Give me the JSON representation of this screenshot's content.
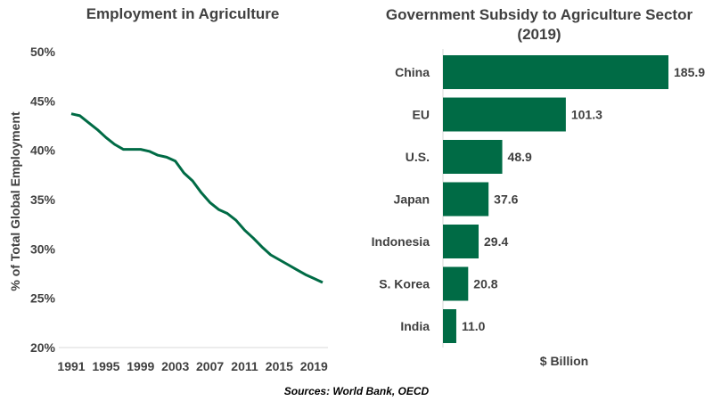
{
  "colors": {
    "series": "#006B45",
    "text": "#404040"
  },
  "source": "Sources: World Bank, OECD",
  "chart_data": [
    {
      "type": "line",
      "title": "Employment in Agriculture",
      "ylabel": "% of Total Global Employment",
      "xlabel": "",
      "x_ticks": [
        1991,
        1995,
        1999,
        2003,
        2007,
        2011,
        2015,
        2019
      ],
      "y_ticks": [
        "20%",
        "25%",
        "30%",
        "35%",
        "40%",
        "45%",
        "50%"
      ],
      "xlim": [
        1991,
        2020
      ],
      "ylim": [
        20,
        50
      ],
      "grid": false,
      "x": [
        1991,
        1992,
        1993,
        1994,
        1995,
        1996,
        1997,
        1998,
        1999,
        2000,
        2001,
        2002,
        2003,
        2004,
        2005,
        2006,
        2007,
        2008,
        2009,
        2010,
        2011,
        2012,
        2013,
        2014,
        2015,
        2016,
        2017,
        2018,
        2019,
        2020
      ],
      "y": [
        43.7,
        43.5,
        42.8,
        42.1,
        41.3,
        40.6,
        40.1,
        40.1,
        40.1,
        39.9,
        39.5,
        39.3,
        38.9,
        37.7,
        36.9,
        35.7,
        34.7,
        34.0,
        33.6,
        32.9,
        31.9,
        31.1,
        30.2,
        29.4,
        28.9,
        28.4,
        27.9,
        27.4,
        27.0,
        26.6
      ]
    },
    {
      "type": "bar",
      "orientation": "horizontal",
      "title": "Government Subsidy to Agriculture Sector (2019)",
      "xlabel": "$ Billion",
      "categories": [
        "China",
        "EU",
        "U.S.",
        "Japan",
        "Indonesia",
        "S. Korea",
        "India"
      ],
      "values": [
        185.9,
        101.3,
        48.9,
        37.6,
        29.4,
        20.8,
        11.0
      ],
      "value_labels": [
        "185.9",
        "101.3",
        "48.9",
        "37.6",
        "29.4",
        "20.8",
        "11.0"
      ],
      "xlim": [
        0,
        185.9
      ],
      "grid": false
    }
  ]
}
